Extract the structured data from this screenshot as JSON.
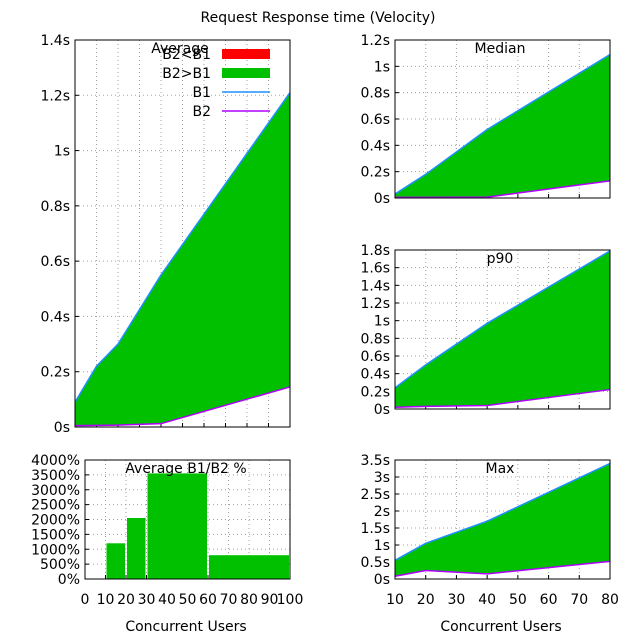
{
  "title": "Request Response time (Velocity)",
  "xlabel_left": "Concurrent Users",
  "xlabel_right": "Concurrent Users",
  "colors": {
    "b2_gt_b1_red": "#ff0000",
    "b2_gt_b1_green": "#00c000",
    "b1": "#1e90ff",
    "b2": "#b000ff",
    "grid": "#a0a0a0"
  },
  "chart_data": [
    {
      "id": "average",
      "type": "area",
      "title": "Average",
      "x": [
        0,
        10,
        20,
        40,
        100
      ],
      "xlim": [
        0,
        100
      ],
      "ylim": [
        0,
        1.4
      ],
      "yticks": [
        0,
        0.2,
        0.4,
        0.6,
        0.8,
        1.0,
        1.2,
        1.4
      ],
      "ytick_labels": [
        "0s",
        "0.2s",
        "0.4s",
        "0.6s",
        "0.8s",
        "1s",
        "1.2s",
        "1.4s"
      ],
      "xticks": [
        0,
        10,
        20,
        30,
        40,
        50,
        60,
        70,
        80,
        90,
        100
      ],
      "legend": [
        {
          "label": "B2<B1",
          "kind": "fill",
          "color": "#ff0000"
        },
        {
          "label": "B2>B1",
          "kind": "fill",
          "color": "#00c000"
        },
        {
          "label": "B1",
          "kind": "line",
          "color": "#1e90ff"
        },
        {
          "label": "B2",
          "kind": "line",
          "color": "#b000ff"
        }
      ],
      "series": [
        {
          "name": "B1",
          "values": [
            0.09,
            0.22,
            0.3,
            0.55,
            1.21
          ]
        },
        {
          "name": "B2",
          "values": [
            0.005,
            0.006,
            0.007,
            0.012,
            0.145
          ]
        }
      ]
    },
    {
      "id": "median",
      "type": "area",
      "title": "Median",
      "x": [
        10,
        20,
        40,
        80
      ],
      "xlim": [
        10,
        80
      ],
      "ylim": [
        0,
        1.2
      ],
      "yticks": [
        0,
        0.2,
        0.4,
        0.6,
        0.8,
        1.0,
        1.2
      ],
      "ytick_labels": [
        "0s",
        "0.2s",
        "0.4s",
        "0.6s",
        "0.8s",
        "1s",
        "1.2s"
      ],
      "xticks": [
        10,
        20,
        30,
        40,
        50,
        60,
        70,
        80
      ],
      "series": [
        {
          "name": "B1",
          "values": [
            0.03,
            0.18,
            0.52,
            1.09
          ]
        },
        {
          "name": "B2",
          "values": [
            0.005,
            0.005,
            0.007,
            0.13
          ]
        }
      ]
    },
    {
      "id": "p90",
      "type": "area",
      "title": "p90",
      "x": [
        10,
        20,
        40,
        80
      ],
      "xlim": [
        10,
        80
      ],
      "ylim": [
        0,
        1.8
      ],
      "yticks": [
        0,
        0.2,
        0.4,
        0.6,
        0.8,
        1.0,
        1.2,
        1.4,
        1.6,
        1.8
      ],
      "ytick_labels": [
        "0s",
        "0.2s",
        "0.4s",
        "0.6s",
        "0.8s",
        "1s",
        "1.2s",
        "1.4s",
        "1.6s",
        "1.8s"
      ],
      "xticks": [
        10,
        20,
        30,
        40,
        50,
        60,
        70,
        80
      ],
      "series": [
        {
          "name": "B1",
          "values": [
            0.24,
            0.5,
            0.97,
            1.79
          ]
        },
        {
          "name": "B2",
          "values": [
            0.02,
            0.03,
            0.04,
            0.22
          ]
        }
      ]
    },
    {
      "id": "average_ratio",
      "type": "bar",
      "title": "Average B1/B2 %",
      "bins": [
        [
          10,
          20
        ],
        [
          20,
          30
        ],
        [
          30,
          60
        ],
        [
          60,
          100
        ]
      ],
      "values": [
        1200,
        2050,
        3550,
        800
      ],
      "xlim": [
        0,
        100
      ],
      "ylim": [
        0,
        4000
      ],
      "yticks": [
        0,
        500,
        1000,
        1500,
        2000,
        2500,
        3000,
        3500,
        4000
      ],
      "ytick_labels": [
        "0%",
        "500%",
        "1000%",
        "1500%",
        "2000%",
        "2500%",
        "3000%",
        "3500%",
        "4000%"
      ],
      "xticks": [
        0,
        10,
        20,
        30,
        40,
        50,
        60,
        70,
        80,
        90,
        100
      ],
      "xtick_labels": [
        "0",
        "10",
        "20",
        "30",
        "40",
        "50",
        "60",
        "70",
        "80",
        "90",
        "100"
      ]
    },
    {
      "id": "max",
      "type": "area",
      "title": "Max",
      "x": [
        10,
        20,
        40,
        80
      ],
      "xlim": [
        10,
        80
      ],
      "ylim": [
        0,
        3.5
      ],
      "yticks": [
        0,
        0.5,
        1.0,
        1.5,
        2.0,
        2.5,
        3.0,
        3.5
      ],
      "ytick_labels": [
        "0s",
        "0.5s",
        "1s",
        "1.5s",
        "2s",
        "2.5s",
        "3s",
        "3.5s"
      ],
      "xticks": [
        10,
        20,
        30,
        40,
        50,
        60,
        70,
        80
      ],
      "xtick_labels": [
        "10",
        "20",
        "30",
        "40",
        "50",
        "60",
        "70",
        "80"
      ],
      "series": [
        {
          "name": "B1",
          "values": [
            0.55,
            1.05,
            1.7,
            3.4
          ]
        },
        {
          "name": "B2",
          "values": [
            0.08,
            0.25,
            0.15,
            0.52
          ]
        }
      ]
    }
  ]
}
